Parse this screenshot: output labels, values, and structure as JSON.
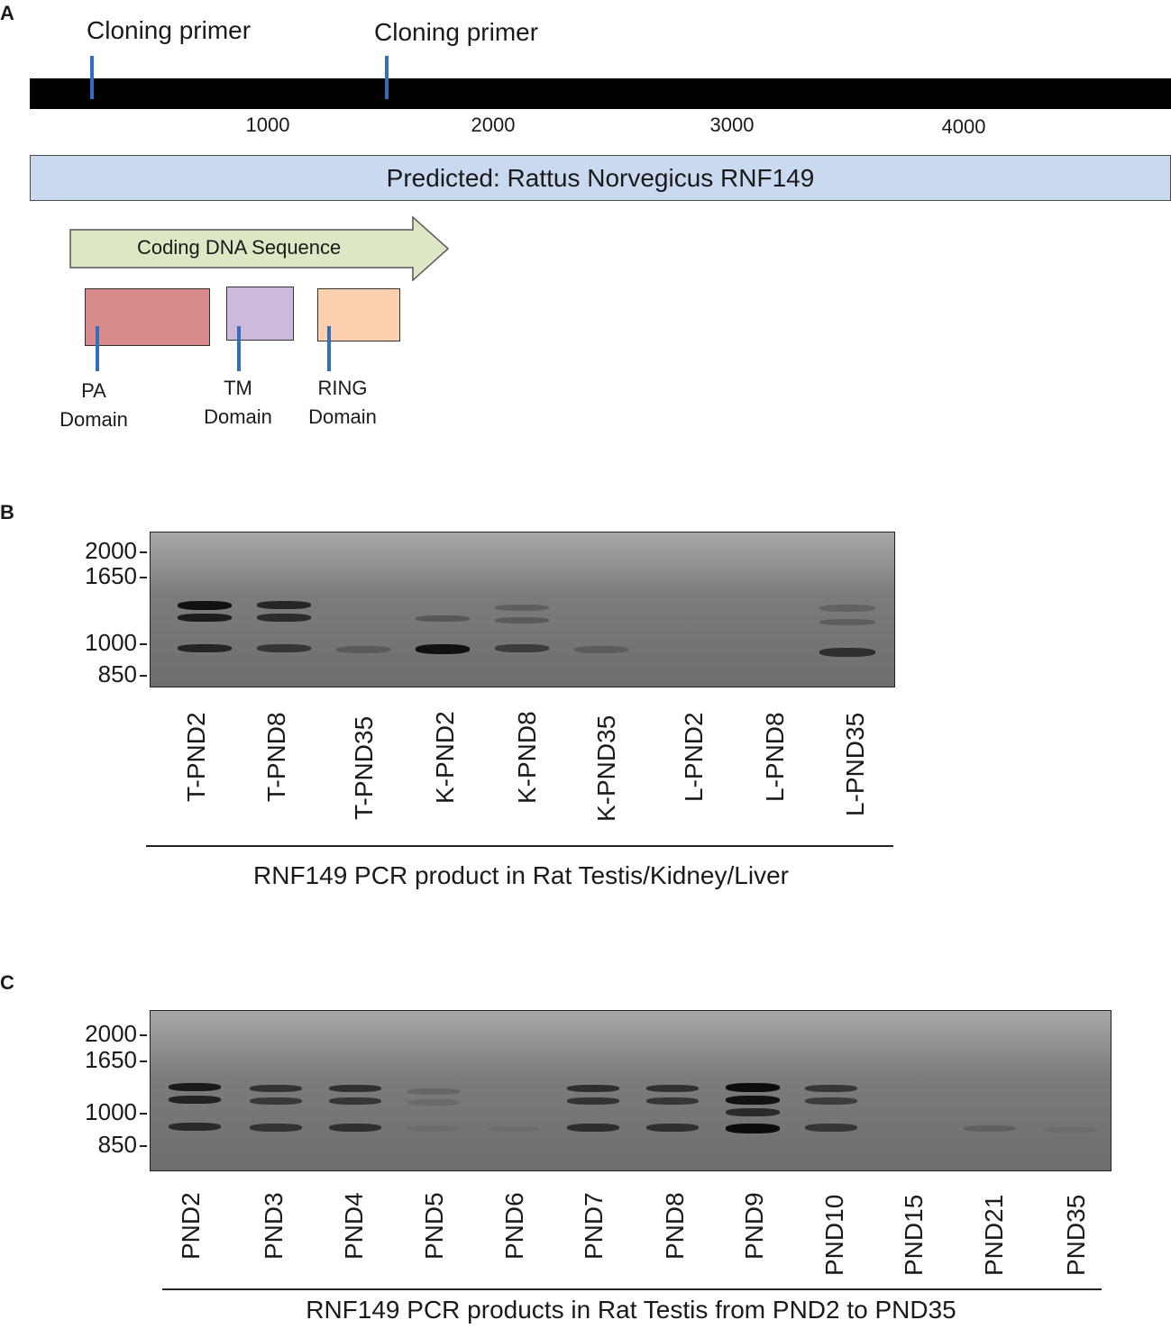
{
  "panel_a": {
    "letter": "A",
    "primers": [
      {
        "label": "Cloning primer"
      },
      {
        "label": "Cloning primer"
      }
    ],
    "scale_ticks": [
      "1000",
      "2000",
      "3000",
      "4000"
    ],
    "mrna_label": "Predicted: Rattus Norvegicus RNF149",
    "cds_label": "Coding DNA Sequence",
    "domains": [
      {
        "line1": "PA",
        "line2": "Domain",
        "color": "#d98a8a"
      },
      {
        "line1": "TM",
        "line2": "Domain",
        "color": "#cdb9dc"
      },
      {
        "line1": "RING",
        "line2": "Domain",
        "color": "#fdd0b0"
      }
    ],
    "colors": {
      "primer": "#2f6fbd",
      "mrna": "#c9daf0",
      "cds": "#dce8c4"
    }
  },
  "panel_b": {
    "letter": "B",
    "ladder": [
      "2000",
      "1650",
      "1000",
      "850"
    ],
    "lanes": [
      "T-PND2",
      "T-PND8",
      "T-PND35",
      "K-PND2",
      "K-PND8",
      "K-PND35",
      "L-PND2",
      "L-PND8",
      "L-PND35"
    ],
    "caption": "RNF149 PCR product in Rat Testis/Kidney/Liver"
  },
  "panel_c": {
    "letter": "C",
    "ladder": [
      "2000",
      "1650",
      "1000",
      "850"
    ],
    "lanes": [
      "PND2",
      "PND3",
      "PND4",
      "PND5",
      "PND6",
      "PND7",
      "PND8",
      "PND9",
      "PND10",
      "PND15",
      "PND21",
      "PND35"
    ],
    "caption": "RNF149 PCR products in Rat Testis from PND2 to PND35"
  }
}
